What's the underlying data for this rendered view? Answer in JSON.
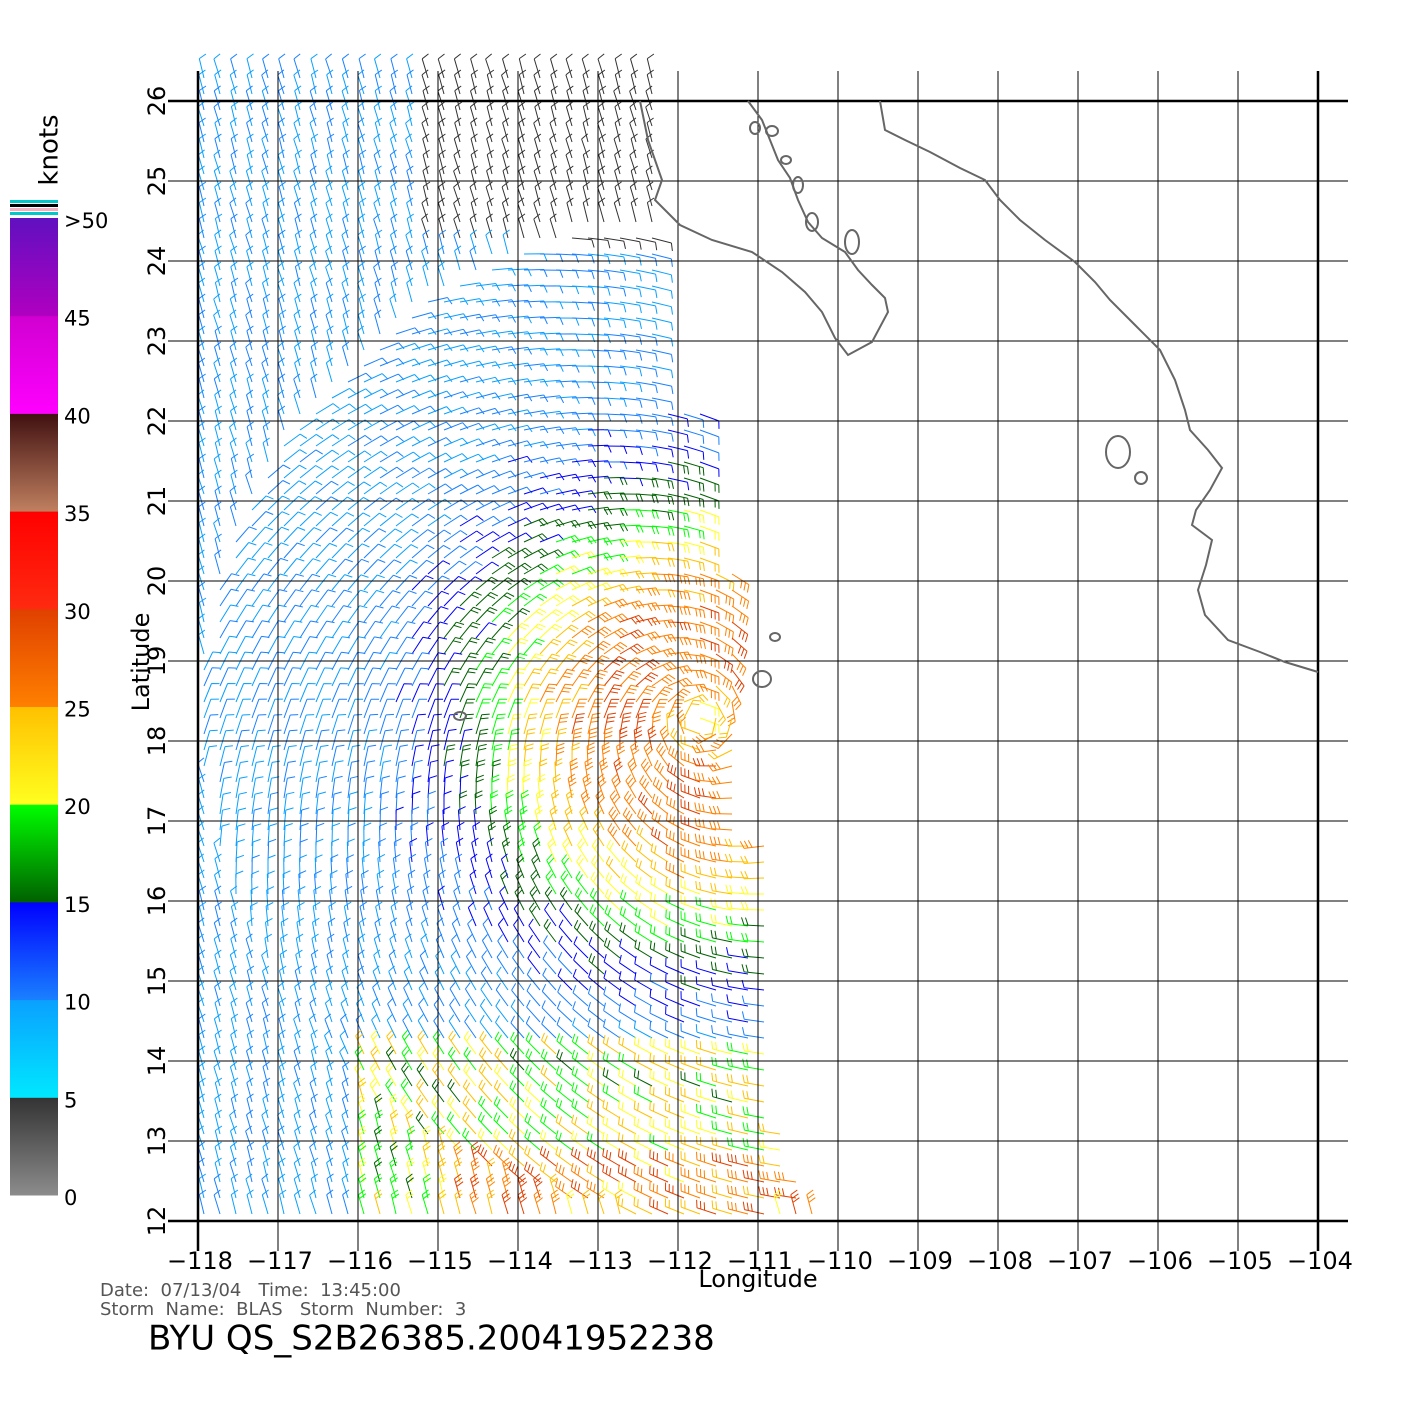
{
  "map": {
    "xlabel": "Longitude",
    "ylabel": "Latitude",
    "xlim": [
      -118,
      -104
    ],
    "ylim": [
      12,
      26
    ],
    "xticks": [
      {
        "value": -118,
        "label": "−118"
      },
      {
        "value": -117,
        "label": "−117"
      },
      {
        "value": -116,
        "label": "−116"
      },
      {
        "value": -115,
        "label": "−115"
      },
      {
        "value": -114,
        "label": "−114"
      },
      {
        "value": -113,
        "label": "−113"
      },
      {
        "value": -112,
        "label": "−112"
      },
      {
        "value": -111,
        "label": "−111"
      },
      {
        "value": -110,
        "label": "−110"
      },
      {
        "value": -109,
        "label": "−109"
      },
      {
        "value": -108,
        "label": "−108"
      },
      {
        "value": -107,
        "label": "−107"
      },
      {
        "value": -106,
        "label": "−106"
      },
      {
        "value": -105,
        "label": "−105"
      },
      {
        "value": -104,
        "label": "−104"
      }
    ],
    "yticks": [
      12,
      13,
      14,
      15,
      16,
      17,
      18,
      19,
      20,
      21,
      22,
      23,
      24,
      25,
      26
    ]
  },
  "colorbar": {
    "unit": "knots",
    "range": [
      0,
      50
    ],
    "ticks": [
      0,
      5,
      10,
      15,
      20,
      25,
      30,
      35,
      40,
      45,
      {
        "value": 50,
        "label": ">50"
      }
    ],
    "colors": [
      [
        "#8c8c8c",
        "#333333"
      ],
      [
        "#00e8ff",
        "#0aa0ff"
      ],
      [
        "#1a80ff",
        "#0000ff"
      ],
      [
        "#006000",
        "#00ff00"
      ],
      [
        "#ffff20",
        "#ffc000"
      ],
      [
        "#ff8000",
        "#e04000"
      ],
      [
        "#ff2a10",
        "#ff0000"
      ],
      [
        "#c08060",
        "#401010"
      ],
      [
        "#ff00ff",
        "#d000d0"
      ],
      [
        "#b000c0",
        "#6010c0"
      ]
    ]
  },
  "info": {
    "line1": "Date:  07/13/04   Time:  13:45:00",
    "line2": "Storm  Name:  BLAS   Storm  Number:  3",
    "title": "BYU  QS_S2B26385.20041952238"
  }
}
